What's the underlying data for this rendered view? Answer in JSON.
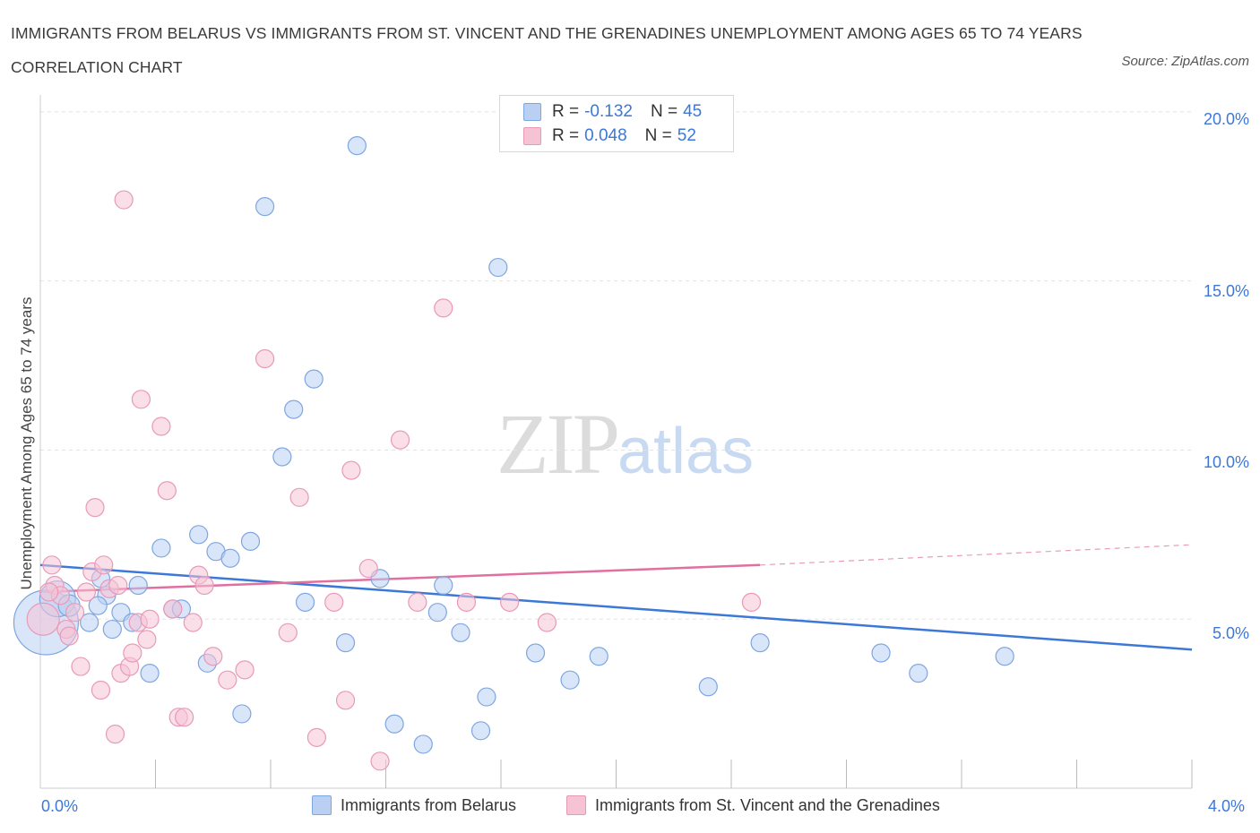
{
  "header": {
    "title": "IMMIGRANTS FROM BELARUS VS IMMIGRANTS FROM ST. VINCENT AND THE GRENADINES UNEMPLOYMENT AMONG AGES 65 TO 74 YEARS CORRELATION CHART",
    "source": "Source: ZipAtlas.com"
  },
  "watermark": {
    "zip": "ZIP",
    "atlas": "atlas"
  },
  "legend_top": [
    {
      "r_label": "R =",
      "r_value": "-0.132",
      "n_label": "N =",
      "n_value": "45"
    },
    {
      "r_label": "R =",
      "r_value": "0.048",
      "n_label": "N =",
      "n_value": "52"
    }
  ],
  "chart_data": {
    "type": "scatter",
    "title": "IMMIGRANTS FROM BELARUS VS IMMIGRANTS FROM ST. VINCENT AND THE GRENADINES UNEMPLOYMENT AMONG AGES 65 TO 74 YEARS CORRELATION CHART",
    "xlabel": "",
    "ylabel": "Unemployment Among Ages 65 to 74 years",
    "xlim": [
      0,
      4.0
    ],
    "ylim": [
      0,
      20.5
    ],
    "x_tick_labels": [
      "0.0%",
      "4.0%"
    ],
    "y_ticks": [
      5,
      10,
      15,
      20
    ],
    "y_tick_labels": [
      "5.0%",
      "10.0%",
      "15.0%",
      "20.0%"
    ],
    "grid": true,
    "legend_position": "bottom",
    "colors": {
      "belarus": "#3b78d8",
      "belarus_fill": "#b9d0f3",
      "stvincent": "#e070a0",
      "stvincent_fill": "#f6c3d5"
    },
    "series": [
      {
        "name": "Immigrants from Belarus",
        "r": -0.132,
        "n": 45,
        "trend": {
          "x": [
            0.0,
            4.0
          ],
          "y": [
            6.6,
            4.1
          ]
        },
        "x": [
          0.02,
          0.06,
          0.1,
          0.17,
          0.21,
          0.23,
          0.25,
          0.28,
          0.32,
          0.34,
          0.38,
          0.42,
          0.46,
          0.49,
          0.55,
          0.58,
          0.61,
          0.66,
          0.7,
          0.73,
          0.78,
          0.84,
          0.88,
          0.92,
          0.95,
          1.06,
          1.1,
          1.18,
          1.23,
          1.33,
          1.38,
          1.4,
          1.46,
          1.53,
          1.55,
          1.59,
          1.72,
          1.84,
          1.94,
          2.32,
          2.5,
          2.92,
          3.05,
          3.35,
          0.2
        ],
        "y": [
          4.9,
          5.6,
          5.4,
          4.9,
          6.2,
          5.7,
          4.7,
          5.2,
          4.9,
          6.0,
          3.4,
          7.1,
          5.3,
          5.3,
          7.5,
          3.7,
          7.0,
          6.8,
          2.2,
          7.3,
          17.2,
          9.8,
          11.2,
          5.5,
          12.1,
          4.3,
          19.0,
          6.2,
          1.9,
          1.3,
          5.2,
          6.0,
          4.6,
          1.7,
          2.7,
          15.4,
          4.0,
          3.2,
          3.9,
          3.0,
          4.3,
          4.0,
          3.4,
          3.9,
          5.4
        ],
        "sizes": [
          36,
          20,
          12,
          10,
          10,
          10,
          10,
          10,
          10,
          10,
          10,
          10,
          10,
          10,
          10,
          10,
          10,
          10,
          10,
          10,
          10,
          10,
          10,
          10,
          10,
          10,
          10,
          10,
          10,
          10,
          10,
          10,
          10,
          10,
          10,
          10,
          10,
          10,
          10,
          10,
          10,
          10,
          10,
          10,
          10
        ]
      },
      {
        "name": "Immigrants from St. Vincent and the Grenadines",
        "r": 0.048,
        "n": 52,
        "trend": {
          "x": [
            0.0,
            2.5
          ],
          "y": [
            5.8,
            6.6
          ]
        },
        "trend_dashed": {
          "x": [
            2.5,
            4.0
          ],
          "y": [
            6.6,
            7.2
          ]
        },
        "x": [
          0.01,
          0.04,
          0.05,
          0.07,
          0.09,
          0.1,
          0.12,
          0.14,
          0.16,
          0.18,
          0.19,
          0.21,
          0.22,
          0.24,
          0.26,
          0.27,
          0.28,
          0.29,
          0.31,
          0.32,
          0.34,
          0.35,
          0.37,
          0.38,
          0.42,
          0.44,
          0.46,
          0.48,
          0.5,
          0.53,
          0.55,
          0.57,
          0.6,
          0.65,
          0.71,
          0.78,
          0.86,
          0.9,
          0.96,
          1.02,
          1.06,
          1.08,
          1.14,
          1.18,
          1.25,
          1.31,
          1.4,
          1.48,
          1.63,
          1.76,
          2.47,
          0.03
        ],
        "y": [
          5.0,
          6.6,
          6.0,
          5.7,
          4.7,
          4.5,
          5.2,
          3.6,
          5.8,
          6.4,
          8.3,
          2.9,
          6.6,
          5.9,
          1.6,
          6.0,
          3.4,
          17.4,
          3.6,
          4.0,
          4.9,
          11.5,
          4.4,
          5.0,
          10.7,
          8.8,
          5.3,
          2.1,
          2.1,
          4.9,
          6.3,
          6.0,
          3.9,
          3.2,
          3.5,
          12.7,
          4.6,
          8.6,
          1.5,
          5.5,
          2.6,
          9.4,
          6.5,
          0.8,
          10.3,
          5.5,
          14.2,
          5.5,
          5.5,
          4.9,
          5.5,
          5.8
        ],
        "sizes": [
          18,
          10,
          10,
          10,
          10,
          10,
          10,
          10,
          10,
          10,
          10,
          10,
          10,
          10,
          10,
          10,
          10,
          10,
          10,
          10,
          10,
          10,
          10,
          10,
          10,
          10,
          10,
          10,
          10,
          10,
          10,
          10,
          10,
          10,
          10,
          10,
          10,
          10,
          10,
          10,
          10,
          10,
          10,
          10,
          10,
          10,
          10,
          10,
          10,
          10,
          10,
          10
        ]
      }
    ]
  },
  "legend_bottom": [
    {
      "label": "Immigrants from Belarus"
    },
    {
      "label": "Immigrants from St. Vincent and the Grenadines"
    }
  ],
  "axis": {
    "x_min_label": "0.0%",
    "x_max_label": "4.0%",
    "y_labels": [
      "20.0%",
      "15.0%",
      "10.0%",
      "5.0%"
    ]
  }
}
